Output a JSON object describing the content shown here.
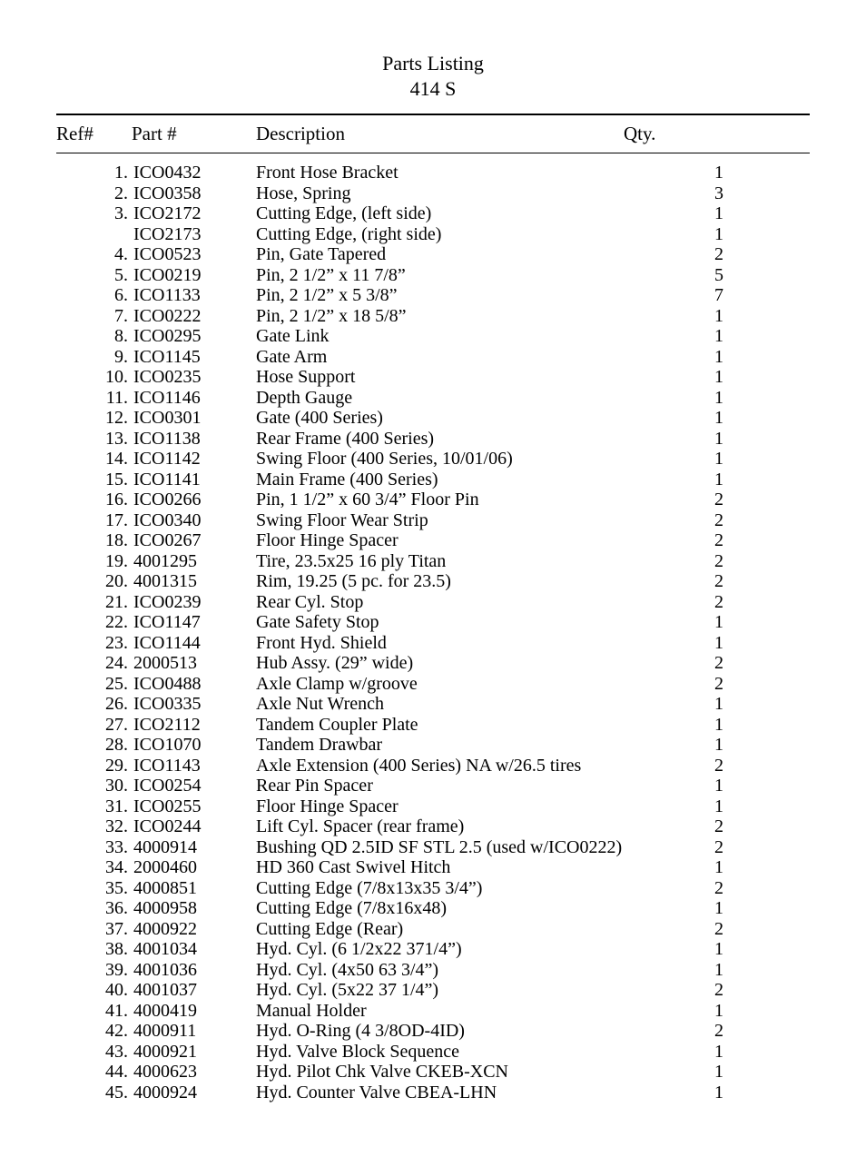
{
  "title_line1": "Parts Listing",
  "title_line2": "414 S",
  "headers": {
    "ref": "Ref#",
    "part": "Part #",
    "desc": "Description",
    "qty": "Qty."
  },
  "rows": [
    {
      "ref": "1.",
      "part": "ICO0432",
      "desc": "Front Hose Bracket",
      "qty": "1"
    },
    {
      "ref": "2.",
      "part": "ICO0358",
      "desc": "Hose, Spring",
      "qty": "3"
    },
    {
      "ref": "3.",
      "part": "ICO2172",
      "desc": "Cutting Edge, (left side)",
      "qty": "1"
    },
    {
      "ref": "",
      "part": "ICO2173",
      "desc": "Cutting Edge, (right side)",
      "qty": "1"
    },
    {
      "ref": "4.",
      "part": "ICO0523",
      "desc": "Pin, Gate Tapered",
      "qty": "2"
    },
    {
      "ref": "5.",
      "part": "ICO0219",
      "desc": "Pin, 2 1/2” x 11 7/8”",
      "qty": "5"
    },
    {
      "ref": "6.",
      "part": "ICO1133",
      "desc": "Pin, 2 1/2” x 5 3/8”",
      "qty": "7"
    },
    {
      "ref": "7.",
      "part": "ICO0222",
      "desc": "Pin, 2 1/2” x 18 5/8”",
      "qty": "1"
    },
    {
      "ref": "8.",
      "part": "ICO0295",
      "desc": "Gate Link",
      "qty": "1"
    },
    {
      "ref": "9.",
      "part": "ICO1145",
      "desc": "Gate Arm",
      "qty": "1"
    },
    {
      "ref": "10.",
      "part": "ICO0235",
      "desc": "Hose Support",
      "qty": "1"
    },
    {
      "ref": "11.",
      "part": "ICO1146",
      "desc": "Depth Gauge",
      "qty": "1"
    },
    {
      "ref": "12.",
      "part": "ICO0301",
      "desc": "Gate (400 Series)",
      "qty": "1"
    },
    {
      "ref": "13.",
      "part": "ICO1138",
      "desc": "Rear Frame (400 Series)",
      "qty": "1"
    },
    {
      "ref": "14.",
      "part": "ICO1142",
      "desc": "Swing Floor (400 Series, 10/01/06)",
      "qty": "1"
    },
    {
      "ref": "15.",
      "part": "ICO1141",
      "desc": "Main Frame (400 Series)",
      "qty": "1"
    },
    {
      "ref": "16.",
      "part": "ICO0266",
      "desc": "Pin, 1 1/2” x 60 3/4” Floor Pin",
      "qty": "2"
    },
    {
      "ref": "17.",
      "part": "ICO0340",
      "desc": "Swing Floor Wear Strip",
      "qty": "2"
    },
    {
      "ref": "18.",
      "part": "ICO0267",
      "desc": "Floor Hinge Spacer",
      "qty": "2"
    },
    {
      "ref": "19.",
      "part": "4001295",
      "desc": "Tire, 23.5x25 16 ply Titan",
      "qty": "2"
    },
    {
      "ref": "20.",
      "part": "4001315",
      "desc": "Rim, 19.25 (5 pc. for 23.5)",
      "qty": "2"
    },
    {
      "ref": "21.",
      "part": "ICO0239",
      "desc": "Rear Cyl. Stop",
      "qty": "2"
    },
    {
      "ref": "22.",
      "part": "ICO1147",
      "desc": "Gate Safety Stop",
      "qty": "1"
    },
    {
      "ref": "23.",
      "part": "ICO1144",
      "desc": "Front Hyd. Shield",
      "qty": "1"
    },
    {
      "ref": "24.",
      "part": "2000513",
      "desc": "Hub Assy. (29” wide)",
      "qty": "2"
    },
    {
      "ref": "25.",
      "part": "ICO0488",
      "desc": "Axle Clamp w/groove",
      "qty": "2"
    },
    {
      "ref": "26.",
      "part": "ICO0335",
      "desc": "Axle Nut Wrench",
      "qty": "1"
    },
    {
      "ref": "27.",
      "part": "ICO2112",
      "desc": "Tandem Coupler Plate",
      "qty": "1"
    },
    {
      "ref": "28.",
      "part": "ICO1070",
      "desc": "Tandem Drawbar",
      "qty": "1"
    },
    {
      "ref": "29.",
      "part": "ICO1143",
      "desc": "Axle Extension (400 Series) NA w/26.5 tires",
      "qty": "2"
    },
    {
      "ref": "30.",
      "part": "ICO0254",
      "desc": "Rear Pin Spacer",
      "qty": "1"
    },
    {
      "ref": "31.",
      "part": "ICO0255",
      "desc": "Floor Hinge Spacer",
      "qty": "1"
    },
    {
      "ref": "32.",
      "part": "ICO0244",
      "desc": "Lift Cyl. Spacer (rear frame)",
      "qty": "2"
    },
    {
      "ref": "33.",
      "part": "4000914",
      "desc": "Bushing QD 2.5ID SF STL 2.5 (used w/ICO0222)",
      "qty": "2"
    },
    {
      "ref": "34.",
      "part": "2000460",
      "desc": "HD 360 Cast Swivel Hitch",
      "qty": "1"
    },
    {
      "ref": "35.",
      "part": "4000851",
      "desc": "Cutting Edge (7/8x13x35 3/4”)",
      "qty": "2"
    },
    {
      "ref": "36.",
      "part": "4000958",
      "desc": "Cutting Edge (7/8x16x48)",
      "qty": "1"
    },
    {
      "ref": "37.",
      "part": "4000922",
      "desc": "Cutting Edge (Rear)",
      "qty": "2"
    },
    {
      "ref": "38.",
      "part": "4001034",
      "desc": "Hyd. Cyl. (6 1/2x22  371/4”)",
      "qty": "1"
    },
    {
      "ref": "39.",
      "part": "4001036",
      "desc": "Hyd. Cyl. (4x50  63 3/4”)",
      "qty": "1"
    },
    {
      "ref": "40.",
      "part": "4001037",
      "desc": "Hyd. Cyl. (5x22  37 1/4”)",
      "qty": "2"
    },
    {
      "ref": "41.",
      "part": "4000419",
      "desc": "Manual Holder",
      "qty": "1"
    },
    {
      "ref": "42.",
      "part": "4000911",
      "desc": "Hyd. O-Ring (4 3/8OD-4ID)",
      "qty": "2"
    },
    {
      "ref": "43.",
      "part": "4000921",
      "desc": "Hyd. Valve Block Sequence",
      "qty": "1"
    },
    {
      "ref": "44.",
      "part": "4000623",
      "desc": "Hyd. Pilot Chk Valve CKEB-XCN",
      "qty": "1"
    },
    {
      "ref": "45.",
      "part": "4000924",
      "desc": "Hyd. Counter Valve CBEA-LHN",
      "qty": "1"
    }
  ]
}
